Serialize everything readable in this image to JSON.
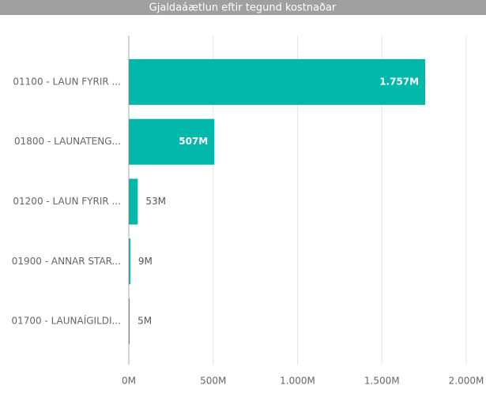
{
  "chart_data": {
    "type": "hbar",
    "title": "Gjaldaáætlun eftir tegund kostnaðar",
    "categories": [
      "01100 - LAUN FYRIR ...",
      "01800 - LAUNATENG...",
      "01200 - LAUN FYRIR ...",
      "01900 - ANNAR STAR...",
      "01700 - LAUNAÍGILDI..."
    ],
    "values": [
      1757,
      507,
      53,
      9,
      5
    ],
    "value_labels": [
      "1.757M",
      "507M",
      "53M",
      "9M",
      "5M"
    ],
    "color": "#01b8aa",
    "xlim": [
      0,
      2000
    ],
    "xticks": [
      {
        "value": 0,
        "label": "0M"
      },
      {
        "value": 500,
        "label": "500M"
      },
      {
        "value": 1000,
        "label": "1.000M"
      },
      {
        "value": 1500,
        "label": "1.500M"
      },
      {
        "value": 2000,
        "label": "2.000M"
      }
    ],
    "grid": true
  }
}
